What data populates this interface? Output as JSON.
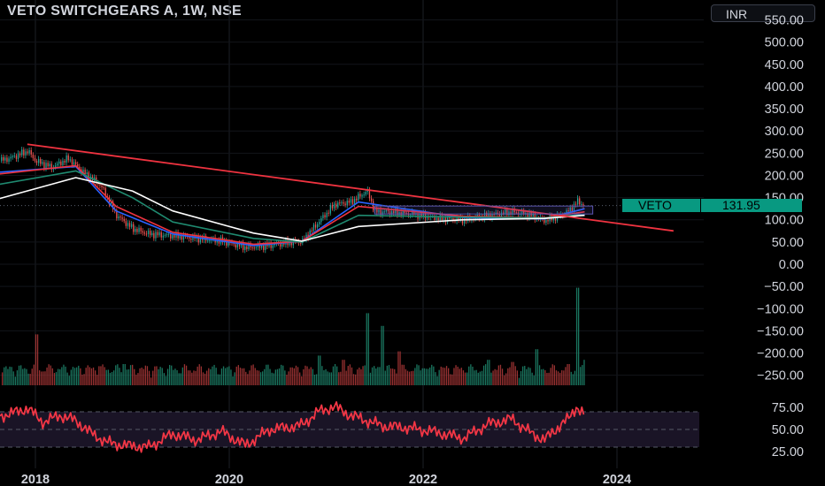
{
  "header": {
    "title": "VETO SWITCHGEARS A, 1W, NSE",
    "currency": "INR"
  },
  "price_label": {
    "symbol": "VETO",
    "value": "131.95"
  },
  "colors": {
    "background": "#000000",
    "up": "#26a69a",
    "down": "#ef5350",
    "ma_fast": "#2962ff",
    "ma_mid": "#ef3340",
    "ma_slow": "#ffffff",
    "ma_green": "#1f8a70",
    "trendline": "#ef3340",
    "rsi": "#f23645",
    "rsi_band": "#1a1426",
    "range_box": "#5b55b3",
    "label_bg": "#089981"
  },
  "chart_data": [
    {
      "type": "candlestick",
      "title": "VETO SWITCHGEARS A, 1W, NSE",
      "timeframe": "1W",
      "x_ticks": [
        "2018",
        "2020",
        "2022",
        "2024"
      ],
      "y_ticks": [
        "550.00",
        "500.00",
        "450.00",
        "400.00",
        "350.00",
        "300.00",
        "250.00",
        "200.00",
        "150.00",
        "100.00",
        "50.00",
        "0.00",
        "−50.00",
        "−100.00",
        "−150.00",
        "−200.00",
        "−250.00"
      ],
      "ylim": [
        -270,
        560
      ],
      "last_price": 131.95,
      "price_path": [
        [
          "2017-07",
          225
        ],
        [
          "2017-10",
          240
        ],
        [
          "2017-12",
          255
        ],
        [
          "2018-01",
          232
        ],
        [
          "2018-03",
          218
        ],
        [
          "2018-05",
          238
        ],
        [
          "2018-07",
          205
        ],
        [
          "2018-09",
          178
        ],
        [
          "2018-11",
          110
        ],
        [
          "2019-01",
          80
        ],
        [
          "2019-03",
          68
        ],
        [
          "2019-06",
          64
        ],
        [
          "2019-09",
          58
        ],
        [
          "2019-12",
          52
        ],
        [
          "2020-03",
          38
        ],
        [
          "2020-05",
          40
        ],
        [
          "2020-08",
          48
        ],
        [
          "2020-10",
          52
        ],
        [
          "2020-12",
          95
        ],
        [
          "2021-02",
          135
        ],
        [
          "2021-04",
          140
        ],
        [
          "2021-05",
          152
        ],
        [
          "2021-06",
          165
        ],
        [
          "2021-07",
          118
        ],
        [
          "2021-09",
          118
        ],
        [
          "2021-12",
          112
        ],
        [
          "2022-03",
          103
        ],
        [
          "2022-06",
          100
        ],
        [
          "2022-09",
          110
        ],
        [
          "2022-12",
          118
        ],
        [
          "2023-02",
          112
        ],
        [
          "2023-04",
          98
        ],
        [
          "2023-06",
          110
        ],
        [
          "2023-07",
          120
        ],
        [
          "2023-08",
          141
        ],
        [
          "2023-09",
          132
        ]
      ],
      "moving_averages": [
        {
          "color": "#2962ff",
          "points": [
            [
              "2017-07",
              205
            ],
            [
              "2018-06",
              220
            ],
            [
              "2018-11",
              120
            ],
            [
              "2019-06",
              68
            ],
            [
              "2020-04",
              42
            ],
            [
              "2020-10",
              52
            ],
            [
              "2021-05",
              140
            ],
            [
              "2022-06",
              105
            ],
            [
              "2023-04",
              102
            ],
            [
              "2023-09",
              125
            ]
          ]
        },
        {
          "color": "#ef3340",
          "points": [
            [
              "2017-07",
              200
            ],
            [
              "2018-06",
              222
            ],
            [
              "2018-11",
              130
            ],
            [
              "2019-06",
              72
            ],
            [
              "2020-04",
              45
            ],
            [
              "2020-10",
              52
            ],
            [
              "2021-05",
              130
            ],
            [
              "2022-06",
              108
            ],
            [
              "2023-04",
              104
            ],
            [
              "2023-09",
              118
            ]
          ]
        },
        {
          "color": "#1f8a70",
          "points": [
            [
              "2017-07",
              175
            ],
            [
              "2018-06",
              210
            ],
            [
              "2019-01",
              150
            ],
            [
              "2019-06",
              95
            ],
            [
              "2020-04",
              58
            ],
            [
              "2020-10",
              50
            ],
            [
              "2021-05",
              110
            ],
            [
              "2022-06",
              106
            ],
            [
              "2023-04",
              104
            ],
            [
              "2023-09",
              112
            ]
          ]
        },
        {
          "color": "#ffffff",
          "points": [
            [
              "2017-07",
              140
            ],
            [
              "2018-06",
              195
            ],
            [
              "2019-01",
              165
            ],
            [
              "2019-06",
              120
            ],
            [
              "2020-04",
              70
            ],
            [
              "2020-10",
              52
            ],
            [
              "2021-05",
              85
            ],
            [
              "2022-06",
              100
            ],
            [
              "2023-04",
              103
            ],
            [
              "2023-09",
              110
            ]
          ]
        }
      ],
      "trendline": [
        [
          "2017-12",
          270
        ],
        [
          "2024-08",
          75
        ]
      ],
      "range_box": {
        "x": [
          "2021-07",
          "2023-10"
        ],
        "y": [
          113,
          131
        ]
      },
      "volume": [
        [
          "2017-08",
          20
        ],
        [
          "2017-11",
          25
        ],
        [
          "2018-01",
          120
        ],
        [
          "2018-03",
          40
        ],
        [
          "2018-06",
          30
        ],
        [
          "2018-09",
          45
        ],
        [
          "2018-12",
          50
        ],
        [
          "2019-04",
          30
        ],
        [
          "2019-08",
          35
        ],
        [
          "2019-12",
          25
        ],
        [
          "2020-04",
          20
        ],
        [
          "2020-08",
          25
        ],
        [
          "2020-12",
          70
        ],
        [
          "2021-03",
          60
        ],
        [
          "2021-06",
          170
        ],
        [
          "2021-08",
          140
        ],
        [
          "2021-10",
          80
        ],
        [
          "2022-01",
          40
        ],
        [
          "2022-06",
          30
        ],
        [
          "2022-09",
          60
        ],
        [
          "2022-12",
          55
        ],
        [
          "2023-03",
          85
        ],
        [
          "2023-07",
          50
        ],
        [
          "2023-08",
          230
        ],
        [
          "2023-09",
          60
        ]
      ]
    },
    {
      "type": "line",
      "indicator": "RSI",
      "y_ticks": [
        "75.00",
        "50.00",
        "25.00"
      ],
      "ylim": [
        20,
        85
      ],
      "bands": [
        30,
        70
      ],
      "midline": 50,
      "points": [
        [
          "2017-07",
          62
        ],
        [
          "2017-10",
          68
        ],
        [
          "2017-12",
          74
        ],
        [
          "2018-02",
          58
        ],
        [
          "2018-04",
          66
        ],
        [
          "2018-06",
          60
        ],
        [
          "2018-08",
          45
        ],
        [
          "2018-10",
          35
        ],
        [
          "2018-12",
          32
        ],
        [
          "2019-03",
          30
        ],
        [
          "2019-06",
          45
        ],
        [
          "2019-09",
          38
        ],
        [
          "2019-12",
          48
        ],
        [
          "2020-03",
          32
        ],
        [
          "2020-06",
          50
        ],
        [
          "2020-08",
          52
        ],
        [
          "2020-10",
          55
        ],
        [
          "2020-12",
          70
        ],
        [
          "2021-02",
          76
        ],
        [
          "2021-04",
          66
        ],
        [
          "2021-06",
          60
        ],
        [
          "2021-08",
          54
        ],
        [
          "2021-11",
          52
        ],
        [
          "2022-02",
          48
        ],
        [
          "2022-06",
          40
        ],
        [
          "2022-09",
          56
        ],
        [
          "2022-12",
          62
        ],
        [
          "2023-02",
          48
        ],
        [
          "2023-04",
          38
        ],
        [
          "2023-06",
          55
        ],
        [
          "2023-07",
          62
        ],
        [
          "2023-08",
          76
        ],
        [
          "2023-09",
          66
        ]
      ]
    }
  ]
}
